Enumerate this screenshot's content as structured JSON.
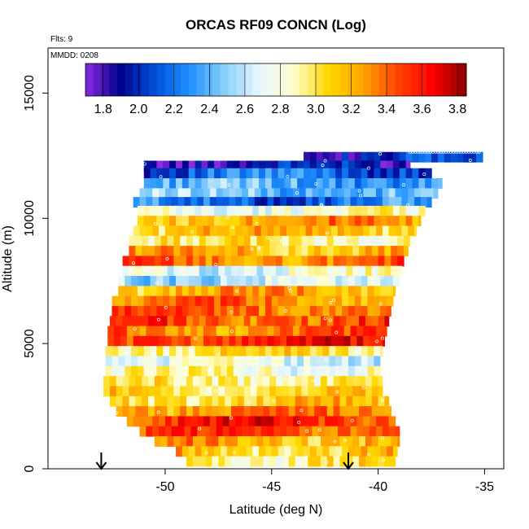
{
  "chart_data": {
    "type": "heatmap",
    "title": "ORCAS RF09 CONCN (Log)",
    "xlabel": "Latitude (deg N)",
    "ylabel": "Altitude (m)",
    "xlim": [
      -55.5,
      -34.1
    ],
    "ylim": [
      0,
      16800
    ],
    "x_ticks": [
      -50,
      -45,
      -40,
      -35
    ],
    "x_tick_labels": [
      "-50",
      "-45",
      "-40",
      "-35"
    ],
    "y_ticks": [
      0,
      5000,
      10000,
      15000
    ],
    "y_tick_labels": [
      "0",
      "5000",
      "10000",
      "15000"
    ],
    "flights_note": "Flts: 9",
    "date_note": "MMDD: 0208",
    "colorbar": {
      "range": [
        1.7,
        3.85
      ],
      "ticks": [
        1.8,
        2.0,
        2.2,
        2.4,
        2.6,
        2.8,
        3.0,
        3.2,
        3.4,
        3.6,
        3.8
      ],
      "tick_labels": [
        "1.8",
        "2.0",
        "2.2",
        "2.4",
        "2.6",
        "2.8",
        "3.0",
        "3.2",
        "3.4",
        "3.6",
        "3.8"
      ],
      "colors": [
        "#8a2be2",
        "#00008b",
        "#0050d8",
        "#1e90ff",
        "#87cefa",
        "#e6f7ff",
        "#ffffd0",
        "#ffd700",
        "#ffa500",
        "#ff4500",
        "#ff0000",
        "#8b0000"
      ]
    },
    "layers": [
      {
        "alt": 12450,
        "lat_min": -43.5,
        "lat_max": -35.1,
        "value": 2.0
      },
      {
        "alt": 12100,
        "lat_min": -51.0,
        "lat_max": -38.5,
        "value": 1.9
      },
      {
        "alt": 11800,
        "lat_min": -51.0,
        "lat_max": -37.5,
        "value": 2.15
      },
      {
        "alt": 11400,
        "lat_min": -51.0,
        "lat_max": -37.0,
        "value": 2.35
      },
      {
        "alt": 11000,
        "lat_min": -51.2,
        "lat_max": -37.2,
        "value": 2.45
      },
      {
        "alt": 10650,
        "lat_min": -51.5,
        "lat_max": -37.5,
        "value": 2.2
      },
      {
        "alt": 10300,
        "lat_min": -51.3,
        "lat_max": -37.8,
        "value": 2.8
      },
      {
        "alt": 9900,
        "lat_min": -51.3,
        "lat_max": -38.0,
        "value": 3.25
      },
      {
        "alt": 9500,
        "lat_min": -51.5,
        "lat_max": -38.2,
        "value": 3.15
      },
      {
        "alt": 9100,
        "lat_min": -51.7,
        "lat_max": -38.4,
        "value": 2.95
      },
      {
        "alt": 8700,
        "lat_min": -51.7,
        "lat_max": -38.6,
        "value": 3.2
      },
      {
        "alt": 8300,
        "lat_min": -52.0,
        "lat_max": -38.8,
        "value": 3.35
      },
      {
        "alt": 7900,
        "lat_min": -52.0,
        "lat_max": -38.9,
        "value": 2.75
      },
      {
        "alt": 7500,
        "lat_min": -52.2,
        "lat_max": -39.0,
        "value": 2.6
      },
      {
        "alt": 7100,
        "lat_min": -52.2,
        "lat_max": -39.2,
        "value": 3.2
      },
      {
        "alt": 6700,
        "lat_min": -52.5,
        "lat_max": -39.3,
        "value": 3.3
      },
      {
        "alt": 6300,
        "lat_min": -52.5,
        "lat_max": -39.4,
        "value": 3.4
      },
      {
        "alt": 5900,
        "lat_min": -52.6,
        "lat_max": -39.5,
        "value": 3.45
      },
      {
        "alt": 5500,
        "lat_min": -52.7,
        "lat_max": -39.6,
        "value": 3.35
      },
      {
        "alt": 5100,
        "lat_min": -52.7,
        "lat_max": -39.7,
        "value": 3.55
      },
      {
        "alt": 4700,
        "lat_min": -52.8,
        "lat_max": -39.8,
        "value": 3.0
      },
      {
        "alt": 4300,
        "lat_min": -52.8,
        "lat_max": -39.9,
        "value": 2.7
      },
      {
        "alt": 3900,
        "lat_min": -52.8,
        "lat_max": -39.9,
        "value": 2.85
      },
      {
        "alt": 3500,
        "lat_min": -52.9,
        "lat_max": -39.8,
        "value": 2.95
      },
      {
        "alt": 3100,
        "lat_min": -52.9,
        "lat_max": -39.8,
        "value": 3.05
      },
      {
        "alt": 2700,
        "lat_min": -52.6,
        "lat_max": -39.5,
        "value": 3.1
      },
      {
        "alt": 2300,
        "lat_min": -52.3,
        "lat_max": -39.4,
        "value": 3.3
      },
      {
        "alt": 1900,
        "lat_min": -51.8,
        "lat_max": -39.2,
        "value": 3.55
      },
      {
        "alt": 1500,
        "lat_min": -51.2,
        "lat_max": -39.0,
        "value": 3.45
      },
      {
        "alt": 1100,
        "lat_min": -50.5,
        "lat_max": -39.0,
        "value": 3.2
      },
      {
        "alt": 700,
        "lat_min": -49.5,
        "lat_max": -39.1,
        "value": 3.1
      },
      {
        "alt": 300,
        "lat_min": -49.0,
        "lat_max": -39.2,
        "value": 2.95
      }
    ],
    "markers": [
      {
        "lat": -53.0,
        "label": "↓"
      },
      {
        "lat": -41.4,
        "label": "↓"
      }
    ],
    "grid": false,
    "legend": "colorbar top inside plot"
  }
}
